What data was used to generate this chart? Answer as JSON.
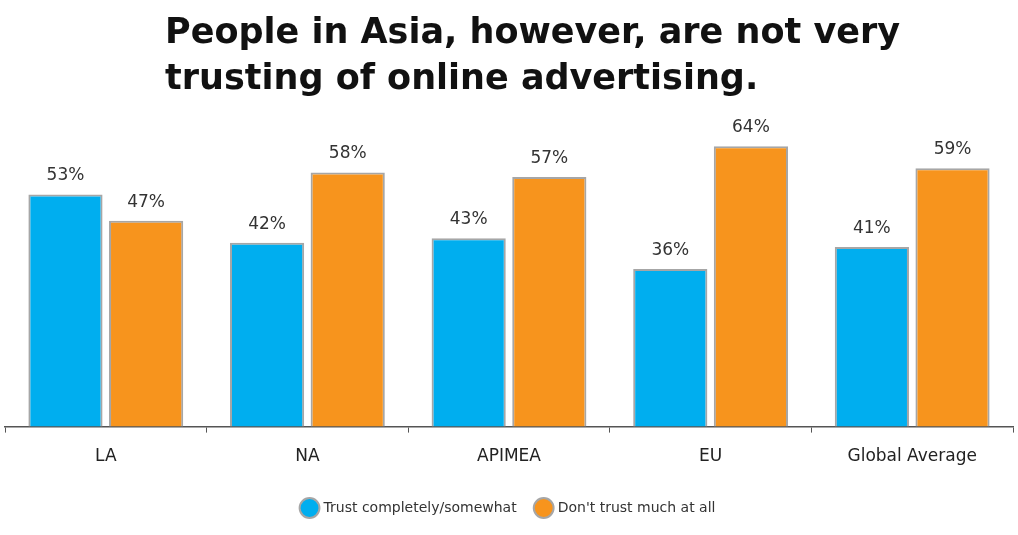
{
  "chart_data": {
    "type": "bar",
    "title": "People in Asia, however, are not very trusting of online advertising.",
    "categories": [
      "LA",
      "NA",
      "APIMEA",
      "EU",
      "Global Average"
    ],
    "series": [
      {
        "name": "Trust completely/somewhat",
        "color": "#00aeef",
        "values": [
          53,
          42,
          43,
          36,
          41
        ],
        "value_labels": [
          "53%",
          "42%",
          "43%",
          "36%",
          "41%"
        ]
      },
      {
        "name": "Don't trust much at all",
        "color": "#f7941d",
        "values": [
          47,
          58,
          57,
          64,
          59
        ],
        "value_labels": [
          "47%",
          "58%",
          "57%",
          "64%",
          "59%"
        ]
      }
    ],
    "legend": "bottom",
    "grid": false,
    "tick_labels": "x"
  }
}
